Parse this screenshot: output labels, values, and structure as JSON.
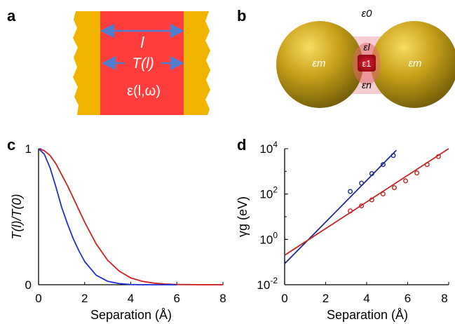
{
  "panels": {
    "a": {
      "label": "a",
      "length_symbol": "l",
      "transmission_label": "T(l)",
      "dielectric_label": "ε(l,ω)",
      "colors": {
        "electrode": "#f0b400",
        "gap": "#ff3d3d",
        "arrow": "#4f7ed0"
      }
    },
    "b": {
      "label": "b",
      "eps_0": "ε0",
      "eps_m_left": "εm",
      "eps_m_right": "εm",
      "eps_l": "εl",
      "eps_1": "ε1",
      "eps_n": "εn",
      "colors": {
        "sphere": "#c6a010",
        "core": "#c0101a",
        "halo": "#f3c0c4"
      }
    }
  },
  "chart_data": [
    {
      "panel": "c",
      "type": "line",
      "xlabel": "Separation (Å)",
      "ylabel": "T(l)/T(0)",
      "xlim": [
        0,
        8
      ],
      "ylim": [
        0,
        1
      ],
      "xticks": [
        "0",
        "2",
        "4",
        "6",
        "8"
      ],
      "yticks": [
        "0",
        "1"
      ],
      "grid": false,
      "series": [
        {
          "color": "#d21f1f",
          "x": [
            0,
            0.25,
            0.5,
            0.75,
            1.0,
            1.25,
            1.5,
            1.75,
            2.0,
            2.5,
            3.0,
            3.5,
            4.0,
            4.5,
            5.0,
            5.5,
            6.0,
            7.0,
            8.0
          ],
          "y": [
            1.0,
            0.985,
            0.95,
            0.89,
            0.81,
            0.73,
            0.64,
            0.55,
            0.46,
            0.3,
            0.18,
            0.1,
            0.05,
            0.025,
            0.012,
            0.005,
            0.002,
            0.0,
            0.0
          ]
        },
        {
          "color": "#1f2fd0",
          "x": [
            0,
            0.25,
            0.5,
            0.75,
            1.0,
            1.25,
            1.5,
            1.75,
            2.0,
            2.5,
            3.0,
            3.5,
            4.0,
            4.5,
            5.0,
            6.0
          ],
          "y": [
            1.0,
            0.96,
            0.86,
            0.72,
            0.57,
            0.45,
            0.34,
            0.25,
            0.17,
            0.07,
            0.025,
            0.008,
            0.002,
            0.0,
            0.0,
            0.0
          ]
        }
      ]
    },
    {
      "panel": "d",
      "type": "scatter",
      "xlabel": "Separation (Å)",
      "ylabel": "γg (eV)",
      "xlim": [
        0,
        8
      ],
      "ylim": [
        0.01,
        10000
      ],
      "yscale": "log",
      "xticks": [
        "0",
        "2",
        "4",
        "6",
        "8"
      ],
      "yticks": [
        "10-2",
        "100",
        "102",
        "104"
      ],
      "grid": false,
      "series": [
        {
          "color": "#1e2b8a",
          "points_x": [
            3.2,
            3.75,
            4.25,
            4.8,
            5.3
          ],
          "points_y": [
            130,
            300,
            800,
            2000,
            5000
          ],
          "fit_x": [
            0,
            5.45
          ],
          "fit_y": [
            0.085,
            8500
          ]
        },
        {
          "color": "#c0282a",
          "points_x": [
            3.2,
            3.75,
            4.25,
            4.8,
            5.35,
            5.9,
            6.45,
            6.95,
            7.5
          ],
          "points_y": [
            18,
            30,
            55,
            100,
            190,
            380,
            850,
            2000,
            4500
          ],
          "fit_x": [
            0,
            8.0
          ],
          "fit_y": [
            0.2,
            10000
          ]
        }
      ]
    }
  ],
  "chart_labels": {
    "c": "c",
    "d": "d"
  }
}
